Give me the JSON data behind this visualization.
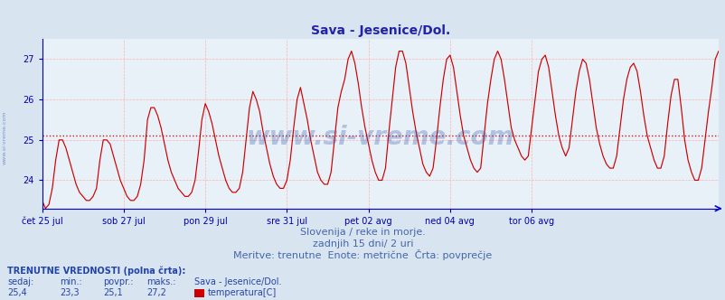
{
  "title": "Sava - Jesenice/Dol.",
  "title_color": "#2222aa",
  "title_fontsize": 10,
  "bg_color": "#d8e4f0",
  "plot_bg_color": "#e8f0f8",
  "line_color": "#cc0000",
  "avg_line_color": "#cc0000",
  "avg_line_value": 25.1,
  "ylim": [
    23.3,
    27.5
  ],
  "yticks": [
    24,
    25,
    26,
    27
  ],
  "grid_color": "#ffaaaa",
  "axis_color": "#0000cc",
  "tick_color": "#0000aa",
  "watermark": "www.si-vreme.com",
  "watermark_color": "#3355aa",
  "watermark_alpha": 0.3,
  "subtitle1": "Slovenija / reke in morje.",
  "subtitle2": "zadnjih 15 dni/ 2 uri",
  "subtitle3": "Meritve: trenutne  Enote: metrične  Črta: povprečje",
  "subtitle_color": "#4466aa",
  "subtitle_fontsize": 8,
  "footer_label1": "TRENUTNE VREDNOSTI (polna črta):",
  "footer_col_headers": [
    "sedaj:",
    "min.:",
    "povpr.:",
    "maks.:",
    "Sava - Jesenice/Dol."
  ],
  "footer_col_values": [
    "25,4",
    "23,3",
    "25,1",
    "27,2",
    "temperatura[C]"
  ],
  "footer_color": "#2244aa",
  "legend_color": "#cc0000",
  "x_tick_labels": [
    "čet 25 jul",
    "sob 27 jul",
    "pon 29 jul",
    "sre 31 jul",
    "pet 02 avg",
    "ned 04 avg",
    "tor 06 avg"
  ],
  "x_tick_positions": [
    0,
    24,
    48,
    72,
    96,
    120,
    144
  ],
  "temperature_data": [
    23.5,
    23.3,
    23.4,
    23.8,
    24.5,
    25.0,
    25.0,
    24.8,
    24.5,
    24.2,
    23.9,
    23.7,
    23.6,
    23.5,
    23.5,
    23.6,
    23.8,
    24.5,
    25.0,
    25.0,
    24.9,
    24.6,
    24.3,
    24.0,
    23.8,
    23.6,
    23.5,
    23.5,
    23.6,
    23.9,
    24.5,
    25.5,
    25.8,
    25.8,
    25.6,
    25.3,
    24.9,
    24.5,
    24.2,
    24.0,
    23.8,
    23.7,
    23.6,
    23.6,
    23.7,
    24.0,
    24.7,
    25.5,
    25.9,
    25.7,
    25.4,
    25.0,
    24.6,
    24.3,
    24.0,
    23.8,
    23.7,
    23.7,
    23.8,
    24.2,
    25.0,
    25.8,
    26.2,
    26.0,
    25.7,
    25.2,
    24.8,
    24.4,
    24.1,
    23.9,
    23.8,
    23.8,
    24.0,
    24.5,
    25.3,
    26.0,
    26.3,
    25.9,
    25.5,
    25.0,
    24.6,
    24.2,
    24.0,
    23.9,
    23.9,
    24.2,
    25.0,
    25.8,
    26.2,
    26.5,
    27.0,
    27.2,
    26.9,
    26.4,
    25.8,
    25.3,
    24.9,
    24.5,
    24.2,
    24.0,
    24.0,
    24.3,
    25.2,
    26.0,
    26.8,
    27.2,
    27.2,
    26.9,
    26.3,
    25.7,
    25.2,
    24.8,
    24.4,
    24.2,
    24.1,
    24.3,
    25.0,
    25.8,
    26.5,
    27.0,
    27.1,
    26.8,
    26.2,
    25.6,
    25.1,
    24.8,
    24.5,
    24.3,
    24.2,
    24.3,
    25.1,
    25.9,
    26.5,
    27.0,
    27.2,
    27.0,
    26.5,
    25.9,
    25.3,
    25.0,
    24.8,
    24.6,
    24.5,
    24.6,
    25.3,
    26.0,
    26.7,
    27.0,
    27.1,
    26.8,
    26.2,
    25.6,
    25.1,
    24.8,
    24.6,
    24.8,
    25.5,
    26.2,
    26.7,
    27.0,
    26.9,
    26.5,
    25.9,
    25.3,
    24.9,
    24.6,
    24.4,
    24.3,
    24.3,
    24.6,
    25.3,
    26.0,
    26.5,
    26.8,
    26.9,
    26.7,
    26.2,
    25.6,
    25.1,
    24.8,
    24.5,
    24.3,
    24.3,
    24.6,
    25.4,
    26.1,
    26.5,
    26.5,
    25.8,
    25.0,
    24.5,
    24.2,
    24.0,
    24.0,
    24.3,
    25.0,
    25.7,
    26.3,
    27.0,
    27.2
  ]
}
